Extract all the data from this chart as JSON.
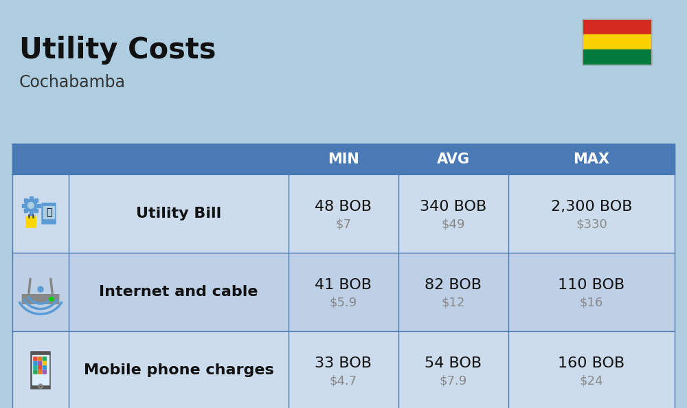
{
  "title": "Utility Costs",
  "subtitle": "Cochabamba",
  "bg_color": "#aecde0",
  "header_bg_color": "#4a7ab5",
  "header_text_color": "#ffffff",
  "row_bg_color_1": "#ccdcec",
  "row_bg_color_2": "#bdd0e6",
  "row_separator_color": "#4a7ab5",
  "col_headers": [
    "MIN",
    "AVG",
    "MAX"
  ],
  "rows": [
    {
      "label": "Utility Bill",
      "min_bob": "48 BOB",
      "min_usd": "$7",
      "avg_bob": "340 BOB",
      "avg_usd": "$49",
      "max_bob": "2,300 BOB",
      "max_usd": "$330"
    },
    {
      "label": "Internet and cable",
      "min_bob": "41 BOB",
      "min_usd": "$5.9",
      "avg_bob": "82 BOB",
      "avg_usd": "$12",
      "max_bob": "110 BOB",
      "max_usd": "$16"
    },
    {
      "label": "Mobile phone charges",
      "min_bob": "33 BOB",
      "min_usd": "$4.7",
      "avg_bob": "54 BOB",
      "avg_usd": "$7.9",
      "max_bob": "160 BOB",
      "max_usd": "$24"
    }
  ],
  "flag_colors": [
    "#d52b1e",
    "#f9d100",
    "#007a3d"
  ],
  "title_fontsize": 30,
  "subtitle_fontsize": 17,
  "header_fontsize": 15,
  "body_fontsize": 16,
  "usd_fontsize": 13,
  "label_fontsize": 16
}
